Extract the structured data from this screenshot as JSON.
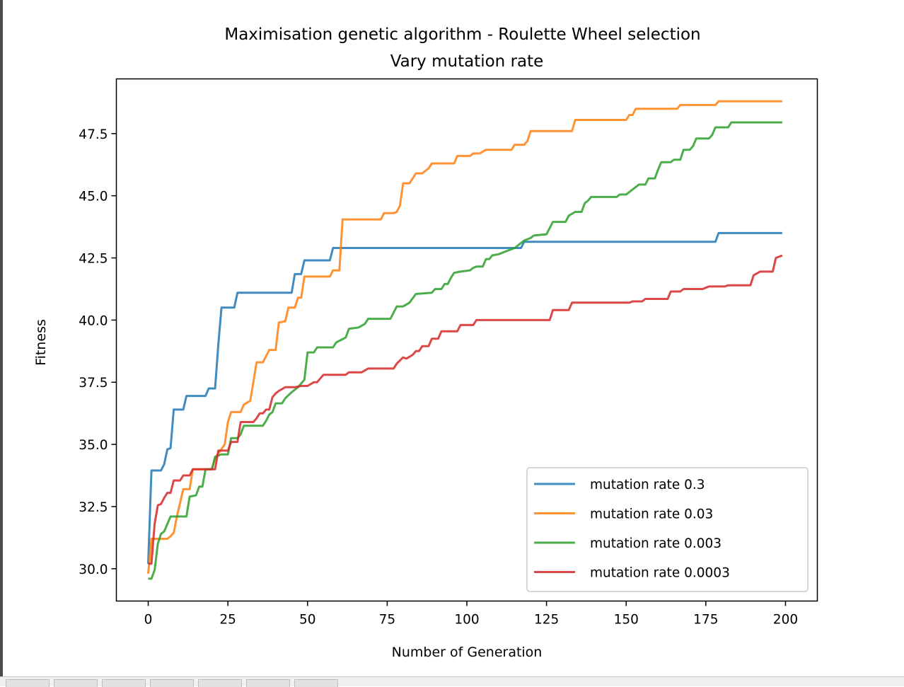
{
  "chart_data": {
    "type": "line",
    "title": "Maximisation genetic algorithm - Roulette Wheel selection",
    "subtitle": "Vary mutation rate",
    "xlabel": "Number of Generation",
    "ylabel": "Fitness",
    "xlim": [
      -10,
      210
    ],
    "ylim": [
      28.7,
      49.7
    ],
    "xticks": [
      "0",
      "25",
      "50",
      "75",
      "100",
      "125",
      "150",
      "175",
      "200"
    ],
    "yticks": [
      "30.0",
      "32.5",
      "35.0",
      "37.5",
      "40.0",
      "42.5",
      "45.0",
      "47.5"
    ],
    "xtick_values": [
      0,
      25,
      50,
      75,
      100,
      125,
      150,
      175,
      200
    ],
    "ytick_values": [
      30.0,
      32.5,
      35.0,
      37.5,
      40.0,
      42.5,
      45.0,
      47.5
    ],
    "grid": false,
    "legend_position": "lower-right",
    "series": [
      {
        "name": "mutation rate 0.3",
        "color": "#1f77b4",
        "points": [
          [
            0,
            30.2
          ],
          [
            1,
            33.95
          ],
          [
            4,
            33.95
          ],
          [
            5,
            34.2
          ],
          [
            6,
            34.8
          ],
          [
            7,
            34.85
          ],
          [
            8,
            36.4
          ],
          [
            11,
            36.4
          ],
          [
            12,
            36.95
          ],
          [
            18,
            36.95
          ],
          [
            19,
            37.25
          ],
          [
            21,
            37.25
          ],
          [
            22,
            39.0
          ],
          [
            23,
            40.5
          ],
          [
            27,
            40.5
          ],
          [
            28,
            41.1
          ],
          [
            45,
            41.1
          ],
          [
            46,
            41.85
          ],
          [
            48,
            41.85
          ],
          [
            49,
            42.4
          ],
          [
            57,
            42.4
          ],
          [
            58,
            42.9
          ],
          [
            117,
            42.9
          ],
          [
            118,
            43.15
          ],
          [
            178,
            43.15
          ],
          [
            179,
            43.5
          ],
          [
            199,
            43.5
          ]
        ]
      },
      {
        "name": "mutation rate 0.03",
        "color": "#ff7f0e",
        "points": [
          [
            0,
            29.8
          ],
          [
            1,
            31.2
          ],
          [
            6,
            31.2
          ],
          [
            7,
            31.3
          ],
          [
            8,
            31.45
          ],
          [
            9,
            32.1
          ],
          [
            11,
            33.2
          ],
          [
            13,
            33.2
          ],
          [
            14,
            34.0
          ],
          [
            20,
            34.0
          ],
          [
            21,
            34.45
          ],
          [
            24,
            35.0
          ],
          [
            25,
            35.9
          ],
          [
            26,
            36.3
          ],
          [
            29,
            36.3
          ],
          [
            30,
            36.6
          ],
          [
            32,
            36.75
          ],
          [
            33,
            37.5
          ],
          [
            34,
            38.3
          ],
          [
            36,
            38.3
          ],
          [
            38,
            38.8
          ],
          [
            40,
            38.8
          ],
          [
            41,
            39.9
          ],
          [
            43,
            39.95
          ],
          [
            44,
            40.5
          ],
          [
            46,
            40.5
          ],
          [
            47,
            40.9
          ],
          [
            48,
            40.9
          ],
          [
            49,
            41.75
          ],
          [
            57,
            41.75
          ],
          [
            58,
            42.0
          ],
          [
            60,
            42.0
          ],
          [
            61,
            44.05
          ],
          [
            73,
            44.05
          ],
          [
            74,
            44.3
          ],
          [
            77,
            44.3
          ],
          [
            78,
            44.35
          ],
          [
            79,
            44.6
          ],
          [
            80,
            45.5
          ],
          [
            82,
            45.5
          ],
          [
            84,
            45.9
          ],
          [
            86,
            45.9
          ],
          [
            88,
            46.1
          ],
          [
            89,
            46.3
          ],
          [
            96,
            46.3
          ],
          [
            97,
            46.6
          ],
          [
            101,
            46.6
          ],
          [
            102,
            46.7
          ],
          [
            104,
            46.7
          ],
          [
            106,
            46.85
          ],
          [
            114,
            46.85
          ],
          [
            115,
            47.05
          ],
          [
            118,
            47.05
          ],
          [
            119,
            47.2
          ],
          [
            120,
            47.6
          ],
          [
            133,
            47.6
          ],
          [
            134,
            48.05
          ],
          [
            150,
            48.05
          ],
          [
            151,
            48.25
          ],
          [
            152,
            48.25
          ],
          [
            153,
            48.5
          ],
          [
            166,
            48.5
          ],
          [
            167,
            48.65
          ],
          [
            178,
            48.65
          ],
          [
            179,
            48.8
          ],
          [
            199,
            48.8
          ]
        ]
      },
      {
        "name": "mutation rate 0.003",
        "color": "#2ca02c",
        "points": [
          [
            0,
            29.6
          ],
          [
            1,
            29.6
          ],
          [
            2,
            29.95
          ],
          [
            3,
            31.0
          ],
          [
            4,
            31.4
          ],
          [
            5,
            31.5
          ],
          [
            6,
            31.8
          ],
          [
            7,
            32.1
          ],
          [
            12,
            32.1
          ],
          [
            13,
            32.9
          ],
          [
            15,
            32.95
          ],
          [
            16,
            33.3
          ],
          [
            17,
            33.3
          ],
          [
            18,
            34.0
          ],
          [
            20,
            34.0
          ],
          [
            21,
            34.5
          ],
          [
            22,
            34.55
          ],
          [
            23,
            34.6
          ],
          [
            25,
            34.6
          ],
          [
            26,
            35.25
          ],
          [
            28,
            35.25
          ],
          [
            29,
            35.4
          ],
          [
            30,
            35.75
          ],
          [
            36,
            35.75
          ],
          [
            37,
            35.95
          ],
          [
            38,
            36.2
          ],
          [
            39,
            36.3
          ],
          [
            40,
            36.65
          ],
          [
            42,
            36.65
          ],
          [
            43,
            36.85
          ],
          [
            45,
            37.1
          ],
          [
            47,
            37.3
          ],
          [
            49,
            37.6
          ],
          [
            50,
            38.7
          ],
          [
            52,
            38.7
          ],
          [
            53,
            38.9
          ],
          [
            58,
            38.9
          ],
          [
            59,
            39.1
          ],
          [
            62,
            39.3
          ],
          [
            63,
            39.65
          ],
          [
            66,
            39.7
          ],
          [
            68,
            39.85
          ],
          [
            69,
            40.05
          ],
          [
            76,
            40.05
          ],
          [
            77,
            40.3
          ],
          [
            78,
            40.55
          ],
          [
            80,
            40.55
          ],
          [
            82,
            40.7
          ],
          [
            84,
            41.05
          ],
          [
            89,
            41.1
          ],
          [
            90,
            41.25
          ],
          [
            92,
            41.25
          ],
          [
            93,
            41.45
          ],
          [
            94,
            41.45
          ],
          [
            95,
            41.7
          ],
          [
            96,
            41.9
          ],
          [
            98,
            41.95
          ],
          [
            101,
            42.0
          ],
          [
            102,
            42.1
          ],
          [
            103,
            42.15
          ],
          [
            105,
            42.15
          ],
          [
            106,
            42.45
          ],
          [
            107,
            42.45
          ],
          [
            108,
            42.6
          ],
          [
            110,
            42.65
          ],
          [
            112,
            42.75
          ],
          [
            115,
            42.9
          ],
          [
            117,
            43.1
          ],
          [
            118,
            43.2
          ],
          [
            120,
            43.3
          ],
          [
            121,
            43.4
          ],
          [
            125,
            43.45
          ],
          [
            126,
            43.7
          ],
          [
            127,
            43.95
          ],
          [
            131,
            43.95
          ],
          [
            132,
            44.2
          ],
          [
            134,
            44.35
          ],
          [
            136,
            44.35
          ],
          [
            137,
            44.7
          ],
          [
            138,
            44.8
          ],
          [
            139,
            44.95
          ],
          [
            147,
            44.95
          ],
          [
            148,
            45.05
          ],
          [
            150,
            45.05
          ],
          [
            151,
            45.15
          ],
          [
            153,
            45.35
          ],
          [
            154,
            45.45
          ],
          [
            156,
            45.45
          ],
          [
            157,
            45.7
          ],
          [
            159,
            45.7
          ],
          [
            160,
            46.05
          ],
          [
            161,
            46.35
          ],
          [
            164,
            46.35
          ],
          [
            165,
            46.45
          ],
          [
            167,
            46.45
          ],
          [
            168,
            46.85
          ],
          [
            170,
            46.85
          ],
          [
            171,
            47.0
          ],
          [
            172,
            47.3
          ],
          [
            176,
            47.3
          ],
          [
            177,
            47.45
          ],
          [
            178,
            47.75
          ],
          [
            182,
            47.75
          ],
          [
            183,
            47.95
          ],
          [
            199,
            47.95
          ]
        ]
      },
      {
        "name": "mutation rate 0.0003",
        "color": "#d62728",
        "points": [
          [
            0,
            30.2
          ],
          [
            1,
            30.2
          ],
          [
            2,
            31.8
          ],
          [
            3,
            32.55
          ],
          [
            4,
            32.6
          ],
          [
            5,
            32.85
          ],
          [
            6,
            33.05
          ],
          [
            7,
            33.05
          ],
          [
            8,
            33.55
          ],
          [
            10,
            33.55
          ],
          [
            11,
            33.75
          ],
          [
            13,
            33.75
          ],
          [
            14,
            34.0
          ],
          [
            21,
            34.0
          ],
          [
            22,
            34.75
          ],
          [
            25,
            34.75
          ],
          [
            26,
            35.1
          ],
          [
            28,
            35.1
          ],
          [
            29,
            35.9
          ],
          [
            33,
            35.9
          ],
          [
            34,
            36.05
          ],
          [
            35,
            36.25
          ],
          [
            36,
            36.25
          ],
          [
            37,
            36.4
          ],
          [
            38,
            36.4
          ],
          [
            39,
            36.9
          ],
          [
            40,
            37.05
          ],
          [
            41,
            37.15
          ],
          [
            43,
            37.3
          ],
          [
            46,
            37.3
          ],
          [
            48,
            37.35
          ],
          [
            50,
            37.35
          ],
          [
            52,
            37.5
          ],
          [
            53,
            37.5
          ],
          [
            55,
            37.8
          ],
          [
            62,
            37.8
          ],
          [
            63,
            37.9
          ],
          [
            67,
            37.9
          ],
          [
            69,
            38.05
          ],
          [
            77,
            38.05
          ],
          [
            78,
            38.25
          ],
          [
            80,
            38.5
          ],
          [
            81,
            38.45
          ],
          [
            83,
            38.6
          ],
          [
            84,
            38.75
          ],
          [
            85,
            38.75
          ],
          [
            86,
            38.95
          ],
          [
            88,
            38.95
          ],
          [
            89,
            39.25
          ],
          [
            91,
            39.25
          ],
          [
            92,
            39.55
          ],
          [
            97,
            39.55
          ],
          [
            98,
            39.8
          ],
          [
            102,
            39.8
          ],
          [
            103,
            40.0
          ],
          [
            126,
            40.0
          ],
          [
            127,
            40.4
          ],
          [
            132,
            40.4
          ],
          [
            133,
            40.7
          ],
          [
            151,
            40.7
          ],
          [
            152,
            40.75
          ],
          [
            155,
            40.75
          ],
          [
            156,
            40.85
          ],
          [
            163,
            40.85
          ],
          [
            164,
            41.15
          ],
          [
            167,
            41.15
          ],
          [
            168,
            41.25
          ],
          [
            174,
            41.25
          ],
          [
            175,
            41.3
          ],
          [
            176,
            41.35
          ],
          [
            181,
            41.35
          ],
          [
            182,
            41.4
          ],
          [
            189,
            41.4
          ],
          [
            190,
            41.8
          ],
          [
            192,
            41.95
          ],
          [
            196,
            41.95
          ],
          [
            197,
            42.5
          ],
          [
            198,
            42.55
          ],
          [
            199,
            42.6
          ]
        ]
      }
    ]
  }
}
